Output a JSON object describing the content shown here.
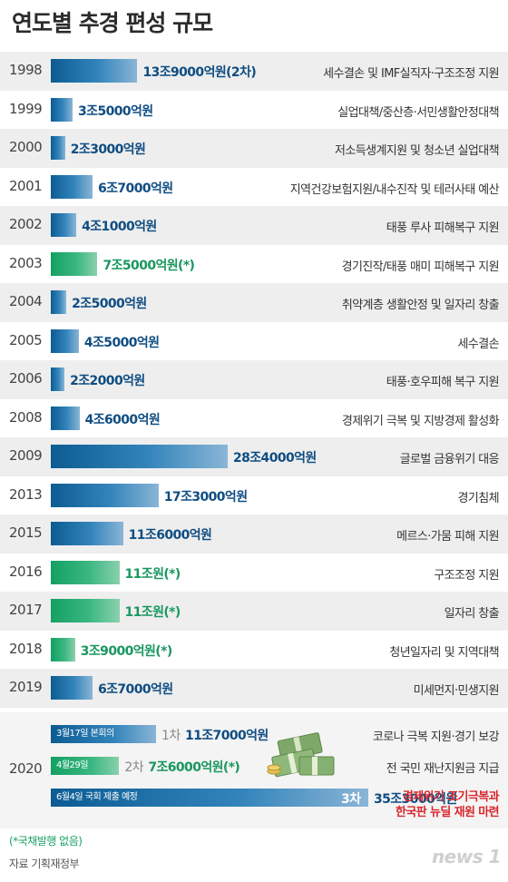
{
  "title": "연도별 추경 편성 규모",
  "chart_data": {
    "type": "bar",
    "unit": "억원",
    "rows": [
      {
        "year": "1998",
        "label": "13조9000억원(2차)",
        "value": 139000,
        "color": "blue",
        "desc": "세수결손 및 IMF실직자·구조조정 지원"
      },
      {
        "year": "1999",
        "label": "3조5000억원",
        "value": 35000,
        "color": "blue",
        "desc": "실업대책/중산층·서민생활안정대책"
      },
      {
        "year": "2000",
        "label": "2조3000억원",
        "value": 23000,
        "color": "blue",
        "desc": "저소득생계지원 및 청소년 실업대책"
      },
      {
        "year": "2001",
        "label": "6조7000억원",
        "value": 67000,
        "color": "blue",
        "desc": "지역건강보험지원/내수진작 및 테러사태 예산"
      },
      {
        "year": "2002",
        "label": "4조1000억원",
        "value": 41000,
        "color": "blue",
        "desc": "태풍 루사 피해복구 지원"
      },
      {
        "year": "2003",
        "label": "7조5000억원(*)",
        "value": 75000,
        "color": "green",
        "desc": "경기진작/태풍 매미 피해복구 지원"
      },
      {
        "year": "2004",
        "label": "2조5000억원",
        "value": 25000,
        "color": "blue",
        "desc": "취약계층 생활안정 및 일자리 창출"
      },
      {
        "year": "2005",
        "label": "4조5000억원",
        "value": 45000,
        "color": "blue",
        "desc": "세수결손"
      },
      {
        "year": "2006",
        "label": "2조2000억원",
        "value": 22000,
        "color": "blue",
        "desc": "태풍·호우피해 복구 지원"
      },
      {
        "year": "2008",
        "label": "4조6000억원",
        "value": 46000,
        "color": "blue",
        "desc": "경제위기 극복 및 지방경제 활성화"
      },
      {
        "year": "2009",
        "label": "28조4000억원",
        "value": 284000,
        "color": "blue",
        "desc": "글로벌 금융위기 대응"
      },
      {
        "year": "2013",
        "label": "17조3000억원",
        "value": 173000,
        "color": "blue",
        "desc": "경기침체"
      },
      {
        "year": "2015",
        "label": "11조6000억원",
        "value": 116000,
        "color": "blue",
        "desc": "메르스·가뭄 피해 지원"
      },
      {
        "year": "2016",
        "label": "11조원(*)",
        "value": 110000,
        "color": "green",
        "desc": "구조조정 지원"
      },
      {
        "year": "2017",
        "label": "11조원(*)",
        "value": 110000,
        "color": "green",
        "desc": "일자리 창출"
      },
      {
        "year": "2018",
        "label": "3조9000억원(*)",
        "value": 39000,
        "color": "green",
        "desc": "청년일자리 및 지역대책"
      },
      {
        "year": "2019",
        "label": "6조7000억원",
        "value": 67000,
        "color": "blue",
        "desc": "미세먼지·민생지원"
      }
    ],
    "year_2020": {
      "year": "2020",
      "items": [
        {
          "date": "3월17일 본회의",
          "order": "1차",
          "label": "11조7000억원",
          "value": 117000,
          "color": "blue",
          "desc": "코로나 극복 지원·경기 보강"
        },
        {
          "date": "4월29일",
          "order": "2차",
          "label": "7조6000억원(*)",
          "value": 76000,
          "color": "green",
          "desc": "전 국민 재난지원금 지급"
        },
        {
          "date": "6월4일 국회 제출 예정",
          "order": "3차",
          "label": "35조3000억원",
          "value": 353000,
          "color": "blue",
          "desc": "경제위기 조기극복과\n한국판 뉴딜 재원 마련"
        }
      ]
    }
  },
  "note": "(*국채발행 없음)",
  "source": "자료 기획재정부",
  "logo": "news 1",
  "icons": {
    "money": "money-bundles-icon"
  },
  "colors": {
    "blue": "#0f4d82",
    "green": "#19975f",
    "red": "#d9262b",
    "stripe": "#eeeeee"
  }
}
